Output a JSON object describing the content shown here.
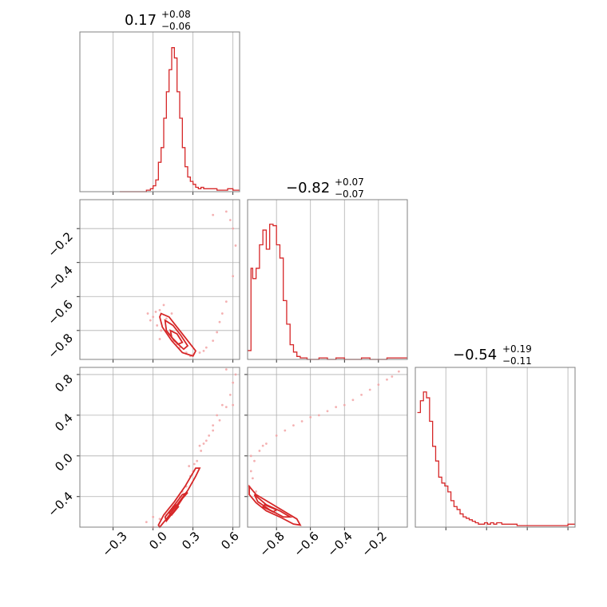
{
  "chart_data": [
    {
      "type": "histogram",
      "panel": "p0_0",
      "title_value": "0.17",
      "title_upper": "+0.08",
      "title_lower": "−0.06",
      "xlim": [
        -0.55,
        0.65
      ],
      "step_x": [
        -0.25,
        -0.2,
        -0.15,
        -0.1,
        -0.05,
        -0.02,
        0.0,
        0.02,
        0.04,
        0.06,
        0.08,
        0.1,
        0.12,
        0.14,
        0.16,
        0.18,
        0.2,
        0.22,
        0.24,
        0.26,
        0.28,
        0.3,
        0.32,
        0.34,
        0.36,
        0.38,
        0.4,
        0.44,
        0.48,
        0.52,
        0.56,
        0.6,
        0.64
      ],
      "step_y": [
        0,
        0,
        0,
        0,
        0.01,
        0.02,
        0.04,
        0.08,
        0.2,
        0.3,
        0.5,
        0.68,
        0.83,
        0.98,
        0.91,
        0.68,
        0.5,
        0.3,
        0.17,
        0.1,
        0.07,
        0.05,
        0.03,
        0.02,
        0.03,
        0.02,
        0.02,
        0.02,
        0.01,
        0.01,
        0.02,
        0.01,
        0.01
      ]
    },
    {
      "type": "histogram",
      "panel": "p1_1",
      "title_value": "−0.82",
      "title_upper": "+0.07",
      "title_lower": "−0.07",
      "xlim": [
        -0.97,
        -0.03
      ],
      "step_x": [
        -0.97,
        -0.95,
        -0.94,
        -0.92,
        -0.9,
        -0.88,
        -0.86,
        -0.84,
        -0.82,
        -0.8,
        -0.78,
        -0.76,
        -0.74,
        -0.72,
        -0.7,
        -0.68,
        -0.66,
        -0.64,
        -0.62,
        -0.6,
        -0.55,
        -0.5,
        -0.45,
        -0.4,
        -0.35,
        -0.3,
        -0.25,
        -0.2,
        -0.15,
        -0.1,
        -0.05,
        -0.03
      ],
      "step_y": [
        0.06,
        0.62,
        0.55,
        0.62,
        0.78,
        0.88,
        0.75,
        0.92,
        0.91,
        0.78,
        0.69,
        0.4,
        0.24,
        0.1,
        0.05,
        0.02,
        0.01,
        0.01,
        0,
        0,
        0.01,
        0,
        0.01,
        0,
        0,
        0.01,
        0,
        0,
        0.01,
        0.01,
        0.01,
        0.01
      ]
    },
    {
      "type": "histogram",
      "panel": "p2_2",
      "title_value": "−0.54",
      "title_upper": "+0.19",
      "title_lower": "−0.11",
      "xlim": [
        -0.7,
        0.87
      ],
      "step_x": [
        -0.68,
        -0.65,
        -0.62,
        -0.59,
        -0.56,
        -0.53,
        -0.5,
        -0.47,
        -0.44,
        -0.41,
        -0.38,
        -0.35,
        -0.32,
        -0.29,
        -0.26,
        -0.23,
        -0.2,
        -0.17,
        -0.14,
        -0.11,
        -0.08,
        -0.05,
        -0.02,
        0.01,
        0.04,
        0.07,
        0.1,
        0.15,
        0.2,
        0.3,
        0.4,
        0.5,
        0.6,
        0.7,
        0.8,
        0.87
      ],
      "step_y": [
        0.78,
        0.86,
        0.92,
        0.88,
        0.72,
        0.55,
        0.45,
        0.34,
        0.3,
        0.28,
        0.24,
        0.18,
        0.14,
        0.12,
        0.09,
        0.07,
        0.06,
        0.05,
        0.04,
        0.03,
        0.02,
        0.02,
        0.03,
        0.02,
        0.03,
        0.02,
        0.03,
        0.02,
        0.02,
        0.01,
        0.01,
        0.01,
        0.01,
        0.01,
        0.02,
        0.02
      ]
    },
    {
      "type": "scatter",
      "panel": "p1_0",
      "xlim": [
        -0.55,
        0.65
      ],
      "ylim": [
        -0.97,
        -0.03
      ],
      "y_ticks": [
        "−0.2",
        "−0.4",
        "−0.6",
        "−0.8"
      ],
      "y_tick_values": [
        -0.2,
        -0.4,
        -0.6,
        -0.8
      ],
      "points": [
        [
          0.05,
          -0.68
        ],
        [
          0.0,
          -0.72
        ],
        [
          0.06,
          -0.8
        ],
        [
          0.02,
          -0.69
        ],
        [
          -0.02,
          -0.74
        ],
        [
          0.1,
          -0.73
        ],
        [
          0.12,
          -0.82
        ],
        [
          0.15,
          -0.86
        ],
        [
          0.2,
          -0.9
        ],
        [
          0.25,
          -0.93
        ],
        [
          0.3,
          -0.94
        ],
        [
          0.35,
          -0.93
        ],
        [
          0.4,
          -0.9
        ],
        [
          0.45,
          -0.86
        ],
        [
          0.5,
          -0.75
        ],
        [
          0.55,
          -0.63
        ],
        [
          0.6,
          -0.48
        ],
        [
          0.62,
          -0.3
        ],
        [
          0.58,
          -0.15
        ],
        [
          0.55,
          -0.1
        ],
        [
          0.6,
          -0.2
        ],
        [
          0.45,
          -0.12
        ],
        [
          0.08,
          -0.65
        ],
        [
          0.03,
          -0.77
        ],
        [
          0.18,
          -0.88
        ],
        [
          0.28,
          -0.95
        ],
        [
          0.38,
          -0.92
        ],
        [
          0.05,
          -0.85
        ],
        [
          -0.04,
          -0.7
        ],
        [
          0.14,
          -0.7
        ],
        [
          0.52,
          -0.7
        ],
        [
          0.48,
          -0.81
        ]
      ],
      "contours": [
        [
          [
            0.06,
            -0.7
          ],
          [
            0.12,
            -0.72
          ],
          [
            0.2,
            -0.8
          ],
          [
            0.27,
            -0.87
          ],
          [
            0.32,
            -0.92
          ],
          [
            0.3,
            -0.95
          ],
          [
            0.22,
            -0.93
          ],
          [
            0.14,
            -0.86
          ],
          [
            0.07,
            -0.78
          ],
          [
            0.05,
            -0.72
          ]
        ],
        [
          [
            0.09,
            -0.74
          ],
          [
            0.15,
            -0.77
          ],
          [
            0.21,
            -0.83
          ],
          [
            0.26,
            -0.89
          ],
          [
            0.23,
            -0.91
          ],
          [
            0.16,
            -0.86
          ],
          [
            0.1,
            -0.8
          ]
        ],
        [
          [
            0.13,
            -0.8
          ],
          [
            0.18,
            -0.82
          ],
          [
            0.22,
            -0.87
          ],
          [
            0.19,
            -0.88
          ],
          [
            0.14,
            -0.84
          ]
        ]
      ]
    },
    {
      "type": "scatter",
      "panel": "p2_0",
      "xlim": [
        -0.55,
        0.65
      ],
      "ylim": [
        -0.7,
        0.87
      ],
      "x_ticks": [
        "−0.3",
        "0.0",
        "0.3",
        "0.6"
      ],
      "x_tick_values": [
        -0.3,
        0.0,
        0.3,
        0.6
      ],
      "y_ticks": [
        "0.8",
        "0.4",
        "0.0",
        "−0.4"
      ],
      "y_tick_values": [
        0.8,
        0.4,
        0.0,
        -0.4
      ],
      "points": [
        [
          0.0,
          -0.7
        ],
        [
          0.05,
          -0.62
        ],
        [
          0.1,
          -0.58
        ],
        [
          0.15,
          -0.5
        ],
        [
          0.2,
          -0.4
        ],
        [
          0.25,
          -0.3
        ],
        [
          0.3,
          -0.15
        ],
        [
          0.33,
          -0.05
        ],
        [
          0.36,
          0.05
        ],
        [
          0.4,
          0.15
        ],
        [
          0.45,
          0.25
        ],
        [
          0.5,
          0.35
        ],
        [
          0.55,
          0.48
        ],
        [
          0.58,
          0.6
        ],
        [
          0.6,
          0.72
        ],
        [
          0.62,
          0.8
        ],
        [
          0.42,
          0.2
        ],
        [
          0.35,
          0.1
        ],
        [
          0.28,
          -0.2
        ],
        [
          0.22,
          -0.35
        ],
        [
          0.48,
          0.4
        ],
        [
          0.52,
          0.5
        ],
        [
          0.38,
          0.12
        ],
        [
          0.31,
          -0.08
        ],
        [
          0.6,
          0.5
        ],
        [
          0.55,
          0.85
        ],
        [
          0.45,
          0.3
        ],
        [
          0.0,
          -0.6
        ],
        [
          -0.05,
          -0.65
        ],
        [
          0.27,
          -0.1
        ]
      ],
      "contours": [
        [
          [
            0.05,
            -0.7
          ],
          [
            0.1,
            -0.62
          ],
          [
            0.18,
            -0.48
          ],
          [
            0.26,
            -0.34
          ],
          [
            0.32,
            -0.2
          ],
          [
            0.35,
            -0.12
          ],
          [
            0.32,
            -0.12
          ],
          [
            0.24,
            -0.3
          ],
          [
            0.16,
            -0.45
          ],
          [
            0.08,
            -0.58
          ],
          [
            0.04,
            -0.68
          ]
        ],
        [
          [
            0.1,
            -0.64
          ],
          [
            0.16,
            -0.54
          ],
          [
            0.22,
            -0.42
          ],
          [
            0.26,
            -0.36
          ],
          [
            0.22,
            -0.38
          ],
          [
            0.15,
            -0.5
          ],
          [
            0.09,
            -0.6
          ]
        ],
        [
          [
            0.14,
            -0.58
          ],
          [
            0.19,
            -0.5
          ],
          [
            0.17,
            -0.48
          ],
          [
            0.12,
            -0.56
          ]
        ]
      ]
    },
    {
      "type": "scatter",
      "panel": "p2_1",
      "xlim": [
        -0.97,
        -0.03
      ],
      "ylim": [
        -0.7,
        0.87
      ],
      "x_ticks": [
        "−0.8",
        "−0.6",
        "−0.4",
        "−0.2"
      ],
      "x_tick_values": [
        -0.8,
        -0.6,
        -0.4,
        -0.2
      ],
      "points": [
        [
          -0.95,
          -0.15
        ],
        [
          -0.93,
          -0.05
        ],
        [
          -0.9,
          0.05
        ],
        [
          -0.86,
          0.12
        ],
        [
          -0.8,
          0.2
        ],
        [
          -0.7,
          0.3
        ],
        [
          -0.6,
          0.38
        ],
        [
          -0.5,
          0.44
        ],
        [
          -0.4,
          0.5
        ],
        [
          -0.3,
          0.6
        ],
        [
          -0.2,
          0.7
        ],
        [
          -0.12,
          0.78
        ],
        [
          -0.08,
          0.83
        ],
        [
          -0.94,
          -0.22
        ],
        [
          -0.96,
          -0.3
        ],
        [
          -0.88,
          0.1
        ],
        [
          -0.75,
          0.25
        ],
        [
          -0.55,
          0.4
        ],
        [
          -0.35,
          0.55
        ],
        [
          -0.15,
          0.75
        ],
        [
          -0.95,
          0.0
        ],
        [
          -0.92,
          -0.35
        ],
        [
          -0.65,
          0.34
        ],
        [
          -0.45,
          0.48
        ],
        [
          -0.25,
          0.65
        ]
      ],
      "contours": [
        [
          [
            -0.96,
            -0.3
          ],
          [
            -0.92,
            -0.38
          ],
          [
            -0.86,
            -0.44
          ],
          [
            -0.8,
            -0.5
          ],
          [
            -0.74,
            -0.56
          ],
          [
            -0.68,
            -0.62
          ],
          [
            -0.66,
            -0.68
          ],
          [
            -0.7,
            -0.67
          ],
          [
            -0.78,
            -0.6
          ],
          [
            -0.86,
            -0.54
          ],
          [
            -0.92,
            -0.46
          ],
          [
            -0.96,
            -0.38
          ]
        ],
        [
          [
            -0.93,
            -0.38
          ],
          [
            -0.86,
            -0.48
          ],
          [
            -0.78,
            -0.54
          ],
          [
            -0.72,
            -0.6
          ],
          [
            -0.76,
            -0.6
          ],
          [
            -0.84,
            -0.53
          ],
          [
            -0.91,
            -0.45
          ]
        ],
        [
          [
            -0.87,
            -0.48
          ],
          [
            -0.8,
            -0.53
          ],
          [
            -0.82,
            -0.55
          ],
          [
            -0.88,
            -0.5
          ]
        ]
      ]
    }
  ],
  "colors": {
    "series": "#d62728",
    "scatter": "#f2a3a4",
    "grid": "#b0b0b0",
    "frame": "#808080"
  }
}
